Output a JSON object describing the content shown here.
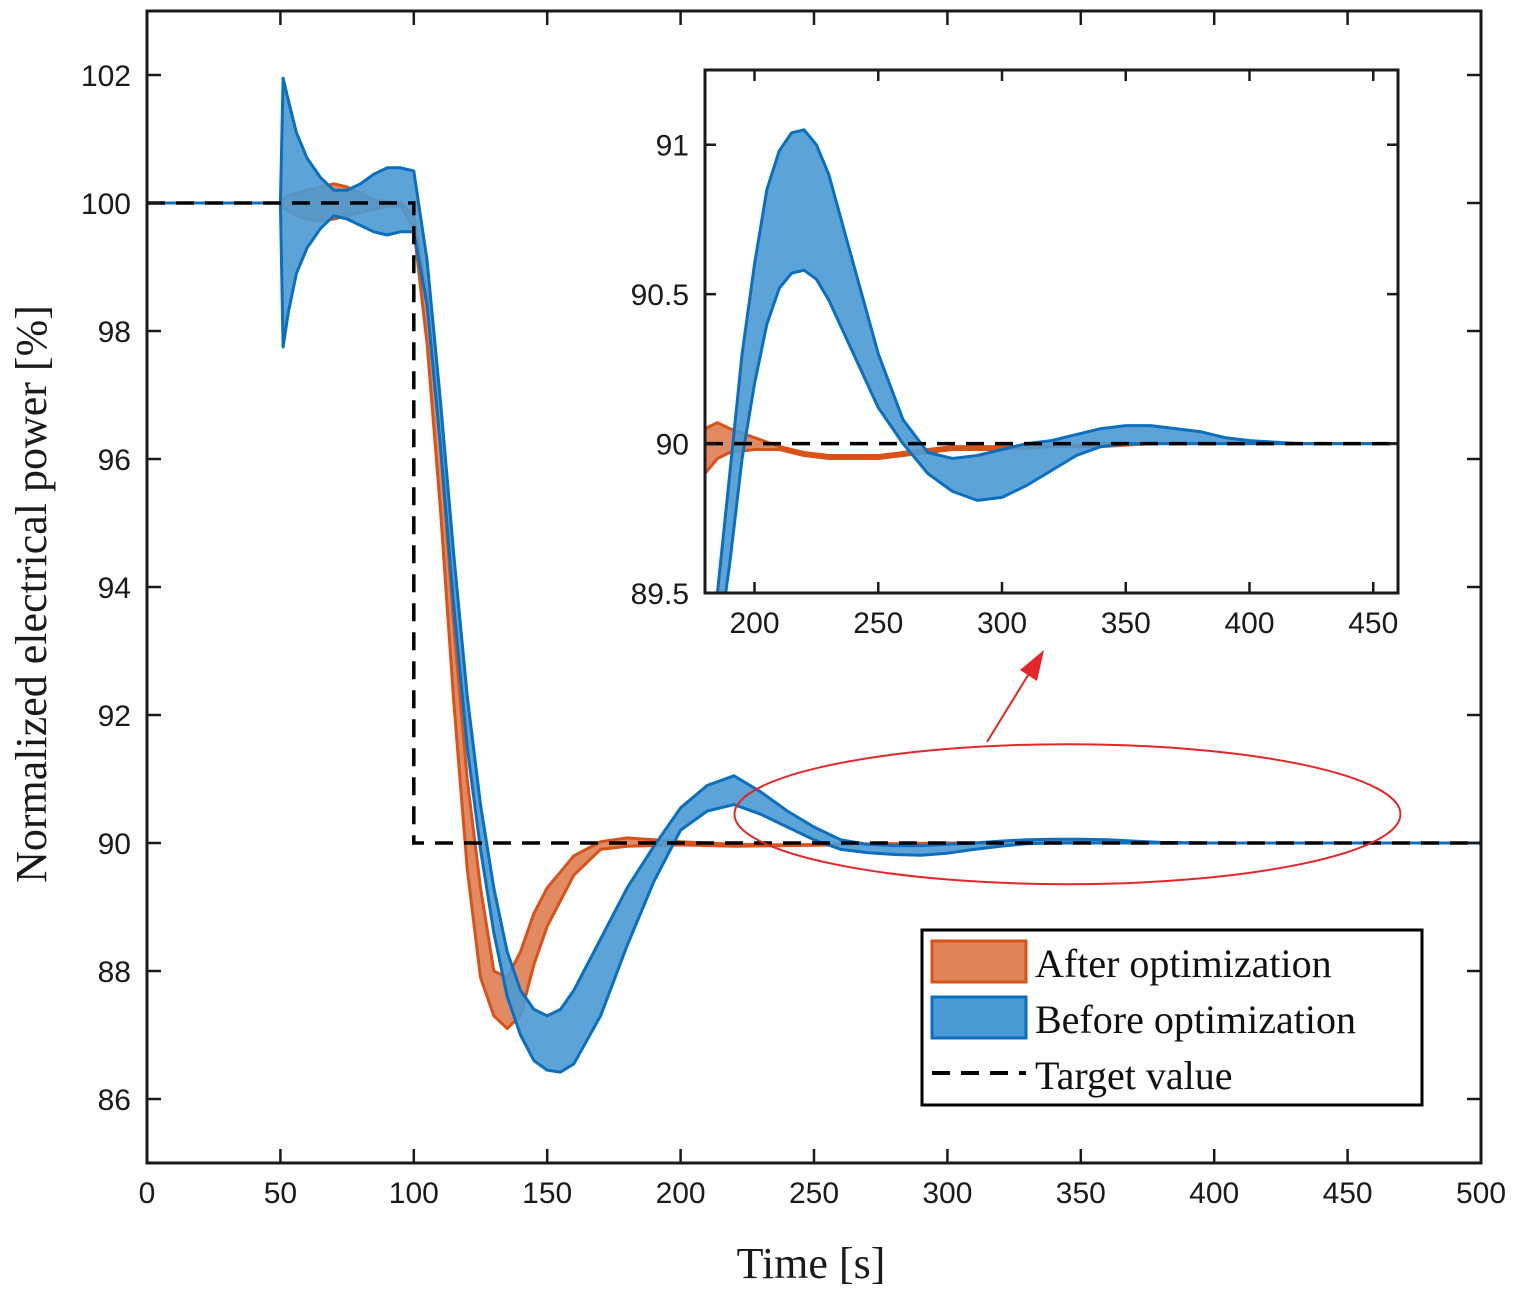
{
  "colors": {
    "after_fill": "#E0845A",
    "after_edge": "#D95319",
    "before_fill": "#4A9AD3",
    "before_edge": "#0B6FBF",
    "target": "#000000",
    "highlight": "#E3262A"
  },
  "chart_data": [
    {
      "type": "area",
      "id": "main",
      "xlabel": "Time [s]",
      "ylabel": "Normalized electrical power [%]",
      "xlim": [
        0,
        500
      ],
      "ylim": [
        85,
        103
      ],
      "xticks": [
        0,
        50,
        100,
        150,
        200,
        250,
        300,
        350,
        400,
        450,
        500
      ],
      "yticks": [
        86,
        88,
        90,
        92,
        94,
        96,
        98,
        100,
        102
      ],
      "xtick_labels": [
        "0",
        "50",
        "100",
        "150",
        "200",
        "250",
        "300",
        "350",
        "400",
        "450",
        "500"
      ],
      "ytick_labels": [
        "86",
        "88",
        "90",
        "92",
        "94",
        "96",
        "98",
        "100",
        "102"
      ],
      "legend_position": "bottom-right",
      "legend": [
        "After optimization",
        "Before optimization",
        "Target value"
      ],
      "series": [
        {
          "name": "After optimization",
          "kind": "band",
          "x": [
            0,
            50,
            52,
            56,
            60,
            65,
            70,
            75,
            80,
            85,
            90,
            95,
            100,
            105,
            110,
            115,
            120,
            125,
            130,
            135,
            140,
            145,
            150,
            160,
            170,
            180,
            190,
            200,
            220,
            240,
            260,
            280,
            300,
            350,
            400,
            450,
            500
          ],
          "upper": [
            100,
            100,
            100.1,
            100.15,
            100.2,
            100.25,
            100.3,
            100.25,
            100.15,
            100.05,
            100.02,
            100.0,
            99.8,
            98.5,
            96.2,
            93.4,
            91.0,
            89.3,
            88.0,
            87.9,
            88.3,
            88.9,
            89.3,
            89.8,
            90.02,
            90.08,
            90.05,
            90.02,
            89.98,
            89.97,
            89.98,
            89.99,
            90.0,
            90.0,
            90.0,
            90.0,
            90.0
          ],
          "lower": [
            100,
            100,
            99.9,
            99.8,
            99.75,
            99.72,
            99.75,
            99.8,
            99.85,
            99.9,
            99.95,
            99.95,
            99.6,
            97.8,
            95.2,
            92.2,
            89.6,
            87.9,
            87.3,
            87.1,
            87.3,
            88.1,
            88.7,
            89.5,
            89.9,
            89.95,
            89.96,
            89.97,
            89.95,
            89.96,
            89.97,
            89.98,
            89.99,
            90.0,
            90.0,
            90.0,
            90.0
          ]
        },
        {
          "name": "Before optimization",
          "kind": "band",
          "x": [
            0,
            50,
            51,
            53,
            56,
            60,
            65,
            70,
            75,
            80,
            85,
            90,
            95,
            100,
            105,
            110,
            115,
            120,
            125,
            130,
            135,
            140,
            145,
            150,
            155,
            160,
            170,
            180,
            190,
            200,
            210,
            220,
            230,
            240,
            250,
            260,
            270,
            280,
            290,
            300,
            310,
            320,
            330,
            340,
            350,
            360,
            370,
            380,
            400,
            450,
            500
          ],
          "upper": [
            100,
            100,
            101.95,
            101.6,
            101.1,
            100.7,
            100.4,
            100.2,
            100.2,
            100.3,
            100.45,
            100.55,
            100.55,
            100.5,
            99.1,
            96.9,
            94.5,
            92.3,
            90.6,
            89.3,
            88.3,
            87.7,
            87.4,
            87.3,
            87.4,
            87.7,
            88.5,
            89.3,
            89.95,
            90.55,
            90.9,
            91.05,
            90.8,
            90.5,
            90.25,
            90.05,
            89.98,
            89.96,
            89.96,
            89.98,
            90.0,
            90.03,
            90.05,
            90.06,
            90.06,
            90.05,
            90.03,
            90.01,
            90.0,
            90.0,
            90.0
          ],
          "lower": [
            100,
            100,
            97.75,
            98.3,
            98.9,
            99.3,
            99.6,
            99.8,
            99.75,
            99.65,
            99.55,
            99.5,
            99.55,
            99.55,
            98.4,
            96.2,
            93.7,
            91.5,
            89.9,
            88.6,
            87.6,
            87.0,
            86.6,
            86.45,
            86.42,
            86.55,
            87.3,
            88.4,
            89.4,
            90.2,
            90.5,
            90.6,
            90.45,
            90.25,
            90.05,
            89.9,
            89.85,
            89.82,
            89.81,
            89.84,
            89.9,
            89.95,
            89.99,
            90.0,
            90.0,
            90.0,
            90.0,
            90.0,
            90.0,
            90.0,
            90.0
          ]
        },
        {
          "name": "Target value",
          "kind": "dashed-line",
          "x": [
            0,
            100,
            100,
            500
          ],
          "y": [
            100,
            100,
            90,
            90
          ]
        }
      ]
    },
    {
      "type": "area",
      "id": "inset",
      "xlim": [
        180,
        460
      ],
      "ylim": [
        89.5,
        91.25
      ],
      "xticks": [
        200,
        250,
        300,
        350,
        400,
        450
      ],
      "yticks": [
        89.5,
        90,
        90.5,
        91
      ],
      "xtick_labels": [
        "200",
        "250",
        "300",
        "350",
        "400",
        "450"
      ],
      "ytick_labels": [
        "89.5",
        "90",
        "90.5",
        "91"
      ],
      "series": [
        {
          "name": "After optimization",
          "kind": "band",
          "x": [
            180,
            185,
            190,
            200,
            210,
            220,
            230,
            240,
            250,
            260,
            270,
            280,
            290,
            300,
            320,
            340,
            360,
            380,
            400,
            430,
            460
          ],
          "upper": [
            90.05,
            90.07,
            90.05,
            90.02,
            89.99,
            89.97,
            89.96,
            89.96,
            89.96,
            89.97,
            89.98,
            89.99,
            89.99,
            89.99,
            89.99,
            90.0,
            90.0,
            90.0,
            90.0,
            90.0,
            90.0
          ],
          "lower": [
            89.9,
            89.95,
            89.97,
            89.98,
            89.98,
            89.96,
            89.95,
            89.95,
            89.95,
            89.96,
            89.97,
            89.98,
            89.98,
            89.98,
            89.99,
            89.99,
            90.0,
            90.0,
            90.0,
            90.0,
            90.0
          ]
        },
        {
          "name": "Before optimization",
          "kind": "band",
          "x": [
            185,
            190,
            195,
            200,
            205,
            210,
            215,
            220,
            225,
            230,
            240,
            250,
            260,
            270,
            280,
            290,
            300,
            310,
            320,
            330,
            340,
            350,
            360,
            370,
            380,
            390,
            400,
            420,
            440,
            460
          ],
          "upper": [
            89.5,
            89.9,
            90.3,
            90.6,
            90.85,
            90.98,
            91.04,
            91.05,
            91.0,
            90.9,
            90.6,
            90.3,
            90.08,
            89.97,
            89.95,
            89.96,
            89.98,
            90.0,
            90.01,
            90.03,
            90.05,
            90.06,
            90.06,
            90.05,
            90.04,
            90.02,
            90.01,
            90.0,
            90.0,
            90.0
          ],
          "lower": [
            89.3,
            89.6,
            89.95,
            90.2,
            90.4,
            90.52,
            90.57,
            90.58,
            90.55,
            90.48,
            90.3,
            90.12,
            90.0,
            89.9,
            89.84,
            89.81,
            89.82,
            89.86,
            89.91,
            89.96,
            89.99,
            90.0,
            90.0,
            90.0,
            90.0,
            90.0,
            90.0,
            90.0,
            90.0,
            90.0
          ]
        },
        {
          "name": "Target value",
          "kind": "dashed-line",
          "x": [
            180,
            460
          ],
          "y": [
            90,
            90
          ]
        }
      ]
    }
  ]
}
